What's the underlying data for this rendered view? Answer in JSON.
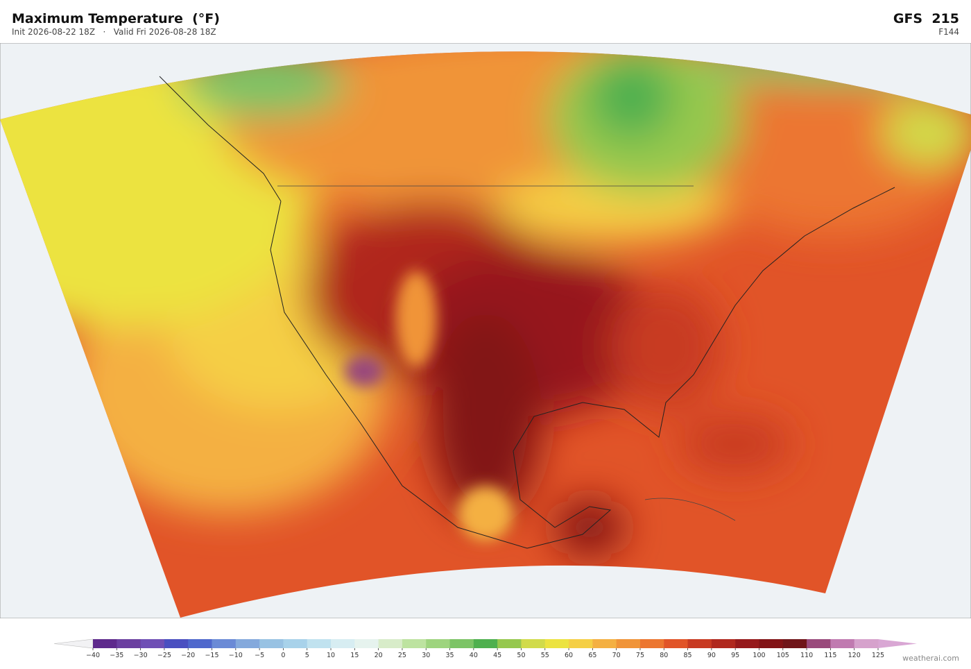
{
  "header": {
    "title": "Maximum Temperature  (°F)",
    "subtitle": "Init 2026-08-22 18Z   ·   Valid Fri 2026-08-28 18Z",
    "model": "GFS  215",
    "forecast_hour": "F144"
  },
  "colorbar": {
    "ticks": [
      {
        "value": -40,
        "label": "−40"
      },
      {
        "value": -35,
        "label": "−35"
      },
      {
        "value": -30,
        "label": "−30"
      },
      {
        "value": -25,
        "label": "−25"
      },
      {
        "value": -20,
        "label": "−20"
      },
      {
        "value": -15,
        "label": "−15"
      },
      {
        "value": -10,
        "label": "−10"
      },
      {
        "value": -5,
        "label": "−5"
      },
      0,
      5,
      10,
      15,
      20,
      25,
      30,
      35,
      40,
      45,
      50,
      55,
      60,
      65,
      70,
      75,
      80,
      85,
      90,
      95,
      100,
      105,
      110,
      115,
      120,
      125
    ],
    "colors": [
      "#5e2a8c",
      "#6b3fa0",
      "#6f4fb5",
      "#4a4fc0",
      "#4f68cc",
      "#6a8ad6",
      "#84a9dc",
      "#98c2e3",
      "#a8d2ea",
      "#c0e2ef",
      "#d7edf2",
      "#e6f3ee",
      "#d8ecc9",
      "#bde3a0",
      "#9ed47e",
      "#7cc466",
      "#4fb04f",
      "#96c84e",
      "#d1db4a",
      "#ece340",
      "#f5cf45",
      "#f4b042",
      "#f09438",
      "#ec7630",
      "#e15428",
      "#c83a22",
      "#b0281e",
      "#96191b",
      "#821316",
      "#701519",
      "#9a4a7c",
      "#c07ab0",
      "#d6a2cc"
    ],
    "under_color": "#f2f2f4",
    "over_color": "#d9a7d4"
  },
  "footer": {
    "watermark": "weatherai.com"
  }
}
